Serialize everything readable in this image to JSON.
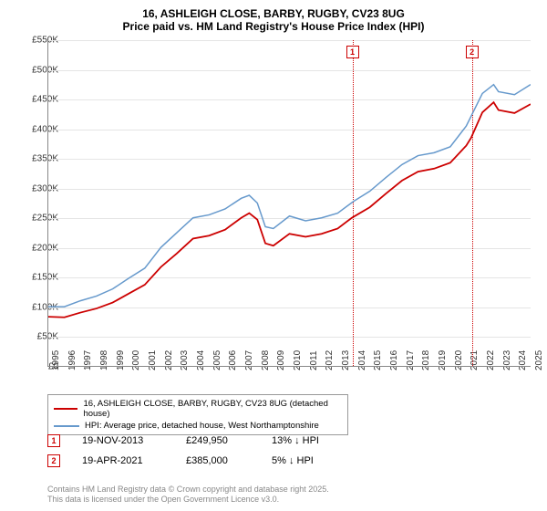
{
  "title": "16, ASHLEIGH CLOSE, BARBY, RUGBY, CV23 8UG",
  "subtitle": "Price paid vs. HM Land Registry's House Price Index (HPI)",
  "chart": {
    "type": "line",
    "ylim": [
      0,
      550
    ],
    "ytick_step": 50,
    "y_unit": "K",
    "y_prefix": "£",
    "xlim": [
      1995,
      2025
    ],
    "xtick_step": 1,
    "grid_color": "#e5e5e5",
    "axis_color": "#888888",
    "background_color": "#ffffff",
    "title_fontsize": 12,
    "label_fontsize": 10,
    "series": [
      {
        "name": "hpi",
        "color": "#6699cc",
        "width": 1.5,
        "points": [
          [
            1995,
            100
          ],
          [
            1996,
            100
          ],
          [
            1997,
            110
          ],
          [
            1998,
            118
          ],
          [
            1999,
            130
          ],
          [
            2000,
            148
          ],
          [
            2001,
            165
          ],
          [
            2002,
            200
          ],
          [
            2003,
            225
          ],
          [
            2004,
            250
          ],
          [
            2005,
            255
          ],
          [
            2006,
            265
          ],
          [
            2007,
            283
          ],
          [
            2007.5,
            288
          ],
          [
            2008,
            275
          ],
          [
            2008.5,
            235
          ],
          [
            2009,
            232
          ],
          [
            2010,
            253
          ],
          [
            2011,
            245
          ],
          [
            2012,
            250
          ],
          [
            2013,
            258
          ],
          [
            2014,
            278
          ],
          [
            2015,
            295
          ],
          [
            2016,
            318
          ],
          [
            2017,
            340
          ],
          [
            2018,
            355
          ],
          [
            2019,
            360
          ],
          [
            2020,
            370
          ],
          [
            2021,
            405
          ],
          [
            2022,
            460
          ],
          [
            2022.7,
            475
          ],
          [
            2023,
            463
          ],
          [
            2024,
            458
          ],
          [
            2025,
            475
          ]
        ]
      },
      {
        "name": "price",
        "color": "#cc0000",
        "width": 1.8,
        "points": [
          [
            1995,
            83
          ],
          [
            1996,
            82
          ],
          [
            1997,
            90
          ],
          [
            1998,
            97
          ],
          [
            1999,
            107
          ],
          [
            2000,
            122
          ],
          [
            2001,
            137
          ],
          [
            2002,
            167
          ],
          [
            2003,
            190
          ],
          [
            2004,
            215
          ],
          [
            2005,
            220
          ],
          [
            2006,
            230
          ],
          [
            2007,
            250
          ],
          [
            2007.5,
            258
          ],
          [
            2008,
            247
          ],
          [
            2008.5,
            207
          ],
          [
            2009,
            203
          ],
          [
            2010,
            223
          ],
          [
            2011,
            218
          ],
          [
            2012,
            223
          ],
          [
            2013,
            232
          ],
          [
            2013.88,
            250
          ],
          [
            2014,
            252
          ],
          [
            2015,
            268
          ],
          [
            2016,
            291
          ],
          [
            2017,
            313
          ],
          [
            2018,
            328
          ],
          [
            2019,
            333
          ],
          [
            2020,
            343
          ],
          [
            2021,
            372
          ],
          [
            2021.3,
            385
          ],
          [
            2022,
            428
          ],
          [
            2022.7,
            445
          ],
          [
            2023,
            432
          ],
          [
            2024,
            427
          ],
          [
            2025,
            442
          ]
        ]
      }
    ],
    "markers": [
      {
        "n": "1",
        "x": 2013.88
      },
      {
        "n": "2",
        "x": 2021.3
      }
    ]
  },
  "legend": {
    "items": [
      {
        "color": "#cc0000",
        "label": "16, ASHLEIGH CLOSE, BARBY, RUGBY, CV23 8UG (detached house)"
      },
      {
        "color": "#6699cc",
        "label": "HPI: Average price, detached house, West Northamptonshire"
      }
    ]
  },
  "sales": [
    {
      "n": "1",
      "date": "19-NOV-2013",
      "price": "£249,950",
      "delta": "13% ↓ HPI"
    },
    {
      "n": "2",
      "date": "19-APR-2021",
      "price": "£385,000",
      "delta": "5% ↓ HPI"
    }
  ],
  "footer": {
    "l1": "Contains HM Land Registry data © Crown copyright and database right 2025.",
    "l2": "This data is licensed under the Open Government Licence v3.0."
  }
}
